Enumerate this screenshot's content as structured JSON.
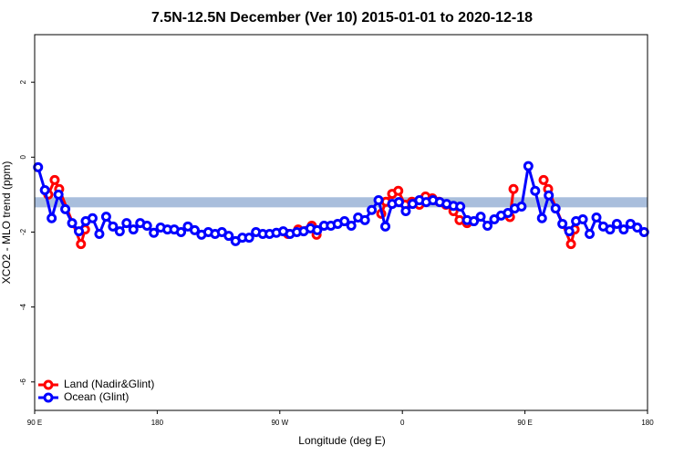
{
  "chart_data": {
    "type": "line",
    "title": "7.5N-12.5N December (Ver 10)   2015-01-01 to 2020-12-18",
    "x_label": "Longitude (deg E)",
    "y_label": "XCO2 - MLO trend (ppm)",
    "xlim": [
      90,
      540
    ],
    "ylim": [
      -6.76,
      3.27
    ],
    "xticks": [
      {
        "value": 90,
        "label": "90 E"
      },
      180,
      {
        "value": 270,
        "label": "90 W"
      },
      {
        "value": 360,
        "label": "0"
      },
      {
        "value": 450,
        "label": "90 E"
      },
      {
        "value": 540,
        "label": "180"
      }
    ],
    "yticks": [
      -6,
      -4,
      -2,
      0,
      2
    ],
    "reference_band": {
      "ylim": [
        -1.34,
        -1.07
      ],
      "color": "#a9bedc"
    },
    "legend": "bottom-left",
    "series": [
      {
        "name": "Land (Nadir&Glint)",
        "color": "#ff0000",
        "x": [
          100,
          104.7,
          108,
          124,
          127,
          null,
          276,
          283.5,
          293.5,
          297,
          null,
          344.5,
          348,
          352.5,
          357,
          362,
          367,
          372.5,
          377,
          382,
          387,
          392,
          397.5,
          402,
          407.5,
          null,
          439,
          441.6,
          null,
          463.7,
          467,
          483.8,
          486.5
        ],
        "values": [
          -1.0,
          -0.61,
          -0.85,
          -2.32,
          -1.93,
          null,
          -2.05,
          -1.93,
          -1.83,
          -2.07,
          null,
          -1.51,
          -1.19,
          -0.98,
          -0.9,
          -1.27,
          -1.19,
          -1.27,
          -1.05,
          -1.1,
          -1.19,
          -1.27,
          -1.44,
          -1.68,
          -1.76,
          null,
          -1.6,
          -0.85,
          null,
          -0.61,
          -0.85,
          -2.32,
          -1.93
        ]
      },
      {
        "name": "Ocean (Glint)",
        "color": "#0000ff",
        "x": [
          92.5,
          97.5,
          102.5,
          107.5,
          112.5,
          117.5,
          122.5,
          127.5,
          132.5,
          137.5,
          142.5,
          147.5,
          152.5,
          157.5,
          162.5,
          167.5,
          172.5,
          177.5,
          182.5,
          187.5,
          192.5,
          197.5,
          202.5,
          207.5,
          212.5,
          217.5,
          222.5,
          227.5,
          232.5,
          237.5,
          242.5,
          247.5,
          252.5,
          257.5,
          262.5,
          267.5,
          272.5,
          277.5,
          282.5,
          287.5,
          292.5,
          297.5,
          302.5,
          307.5,
          312.5,
          317.5,
          322.5,
          327.5,
          332.5,
          337.5,
          342.5,
          347.5,
          352.5,
          357.5,
          362.5,
          367.5,
          372.5,
          377.5,
          382.5,
          387.5,
          392.5,
          397.5,
          402.5,
          407.5,
          412.5,
          417.5,
          422.5,
          427.5,
          432.5,
          437.5,
          442.5,
          447.5,
          452.5,
          457.5,
          462.5,
          467.5,
          472.5,
          477.5,
          482.5,
          487.5,
          492.5,
          497.5,
          502.5,
          507.5,
          512.5,
          517.5,
          522.5,
          527.5,
          532.5,
          537.5
        ],
        "values": [
          -0.27,
          -0.88,
          -1.63,
          -1.0,
          -1.39,
          -1.76,
          -1.98,
          -1.71,
          -1.63,
          -2.05,
          -1.59,
          -1.85,
          -1.98,
          -1.76,
          -1.93,
          -1.76,
          -1.83,
          -2.02,
          -1.88,
          -1.93,
          -1.93,
          -2.0,
          -1.85,
          -1.95,
          -2.07,
          -2.0,
          -2.05,
          -2.0,
          -2.1,
          -2.24,
          -2.15,
          -2.15,
          -2.0,
          -2.05,
          -2.05,
          -2.02,
          -1.98,
          -2.05,
          -2.0,
          -1.98,
          -1.9,
          -1.95,
          -1.83,
          -1.83,
          -1.78,
          -1.71,
          -1.83,
          -1.61,
          -1.68,
          -1.41,
          -1.15,
          -1.85,
          -1.25,
          -1.2,
          -1.44,
          -1.25,
          -1.15,
          -1.2,
          -1.15,
          -1.2,
          -1.25,
          -1.3,
          -1.32,
          -1.68,
          -1.71,
          -1.59,
          -1.83,
          -1.66,
          -1.56,
          -1.49,
          -1.37,
          -1.32,
          -0.24,
          -0.9,
          -1.63,
          -1.02,
          -1.37,
          -1.78,
          -1.98,
          -1.71,
          -1.66,
          -2.05,
          -1.61,
          -1.85,
          -1.93,
          -1.78,
          -1.93,
          -1.78,
          -1.88,
          -2.0
        ]
      }
    ]
  }
}
